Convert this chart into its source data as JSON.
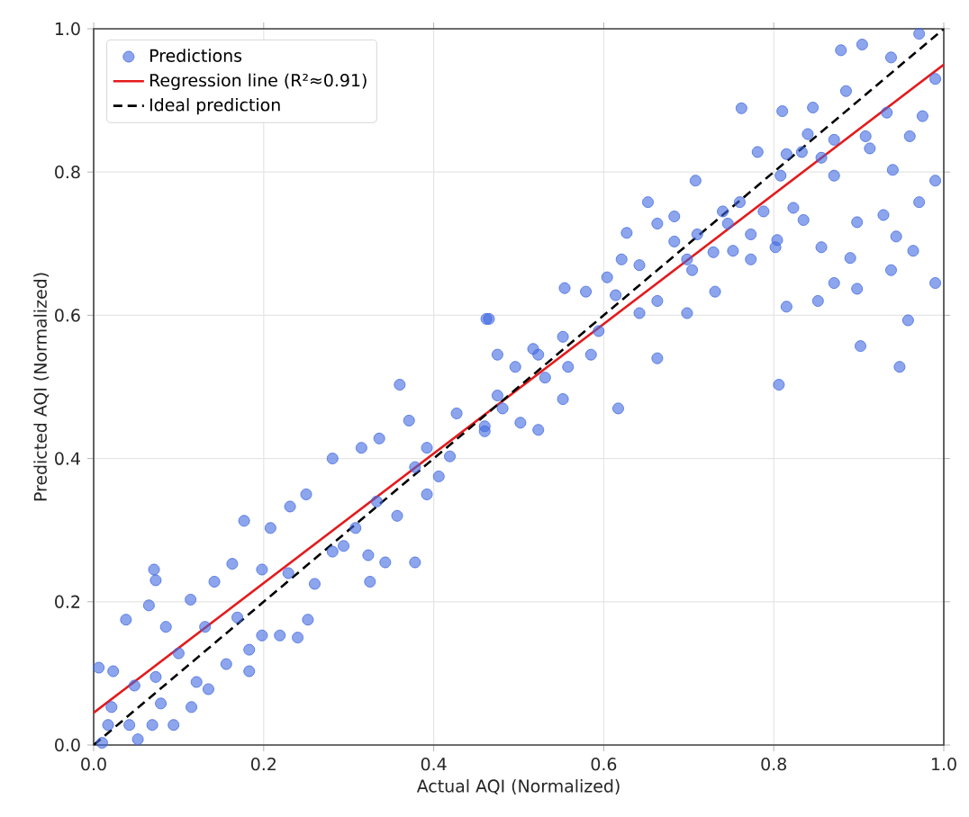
{
  "chart_data": {
    "type": "scatter",
    "xlabel": "Actual AQI (Normalized)",
    "ylabel": "Predicted AQI (Normalized)",
    "xlim": [
      0,
      1
    ],
    "ylim": [
      0,
      1
    ],
    "xticks": [
      {
        "value": 0,
        "label": "0.0"
      },
      0.2,
      0.4,
      0.6,
      0.8,
      {
        "value": 1,
        "label": "1.0"
      }
    ],
    "yticks": [
      {
        "value": 0,
        "label": "0.0"
      },
      0.2,
      0.4,
      0.6,
      0.8,
      {
        "value": 1,
        "label": "1.0"
      }
    ],
    "grid": true,
    "legend": "top left",
    "series": [
      {
        "name": "Predictions",
        "type": "scatter",
        "marker": "circle",
        "color": "#4169e1",
        "x": [
          0.462,
          0.36,
          0.762,
          0.81,
          0.846,
          0.879,
          0.904,
          0.971,
          0.938,
          0.99,
          0.806,
          0.902,
          0.948,
          0.958,
          0.938,
          0.99,
          0.898,
          0.815,
          0.852,
          0.871,
          0.89,
          0.964,
          0.944,
          0.898,
          0.929,
          0.971,
          0.99,
          0.94,
          0.913,
          0.96,
          0.975,
          0.933,
          0.908,
          0.871,
          0.856,
          0.835,
          0.804,
          0.773,
          0.752,
          0.731,
          0.698,
          0.663,
          0.617,
          0.652,
          0.708,
          0.781,
          0.815,
          0.833,
          0.378,
          0.343,
          0.325,
          0.177,
          0.24,
          0.071,
          0.073,
          0.006,
          0.038,
          0.281,
          0.315,
          0.231,
          0.25,
          0.208,
          0.156,
          0.183,
          0.198,
          0.114,
          0.142,
          0.079,
          0.094,
          0.021,
          0.023,
          0.073,
          0.048,
          0.121,
          0.1,
          0.085,
          0.065,
          0.163,
          0.198,
          0.169,
          0.131,
          0.229,
          0.26,
          0.281,
          0.294,
          0.323,
          0.308,
          0.333,
          0.357,
          0.392,
          0.406,
          0.378,
          0.392,
          0.336,
          0.371,
          0.427,
          0.419,
          0.46,
          0.475,
          0.252,
          0.219,
          0.183,
          0.135,
          0.115,
          0.069,
          0.042,
          0.052,
          0.017,
          0.01,
          0.465,
          0.475,
          0.517,
          0.554,
          0.579,
          0.604,
          0.627,
          0.663,
          0.683,
          0.704,
          0.729,
          0.74,
          0.76,
          0.788,
          0.802,
          0.823,
          0.856,
          0.84,
          0.871,
          0.885,
          0.621,
          0.663,
          0.594,
          0.558,
          0.496,
          0.531,
          0.552,
          0.642,
          0.698,
          0.683,
          0.746,
          0.773,
          0.71,
          0.808,
          0.614,
          0.642,
          0.585,
          0.523,
          0.481,
          0.523,
          0.552,
          0.502,
          0.46
        ],
        "values": [
          0.595,
          0.503,
          0.889,
          0.885,
          0.89,
          0.97,
          0.978,
          0.993,
          0.96,
          0.93,
          0.503,
          0.557,
          0.528,
          0.593,
          0.663,
          0.645,
          0.637,
          0.612,
          0.62,
          0.645,
          0.68,
          0.69,
          0.71,
          0.73,
          0.74,
          0.758,
          0.788,
          0.803,
          0.833,
          0.85,
          0.878,
          0.883,
          0.85,
          0.845,
          0.82,
          0.733,
          0.705,
          0.678,
          0.69,
          0.633,
          0.603,
          0.54,
          0.47,
          0.758,
          0.788,
          0.828,
          0.825,
          0.828,
          0.255,
          0.255,
          0.228,
          0.313,
          0.15,
          0.245,
          0.23,
          0.108,
          0.175,
          0.4,
          0.415,
          0.333,
          0.35,
          0.303,
          0.113,
          0.133,
          0.153,
          0.203,
          0.228,
          0.058,
          0.028,
          0.053,
          0.103,
          0.095,
          0.083,
          0.088,
          0.128,
          0.165,
          0.195,
          0.253,
          0.245,
          0.178,
          0.165,
          0.24,
          0.225,
          0.27,
          0.278,
          0.265,
          0.303,
          0.34,
          0.32,
          0.35,
          0.375,
          0.388,
          0.415,
          0.428,
          0.453,
          0.463,
          0.403,
          0.445,
          0.488,
          0.175,
          0.153,
          0.103,
          0.078,
          0.053,
          0.028,
          0.028,
          0.008,
          0.028,
          0.003,
          0.595,
          0.545,
          0.553,
          0.638,
          0.633,
          0.653,
          0.715,
          0.728,
          0.703,
          0.663,
          0.688,
          0.745,
          0.758,
          0.745,
          0.695,
          0.75,
          0.695,
          0.853,
          0.795,
          0.913,
          0.678,
          0.62,
          0.578,
          0.528,
          0.528,
          0.513,
          0.57,
          0.67,
          0.678,
          0.738,
          0.728,
          0.713,
          0.713,
          0.795,
          0.628,
          0.603,
          0.545,
          0.545,
          0.47,
          0.44,
          0.483,
          0.45,
          0.438
        ]
      },
      {
        "name": "Regression line (R²≈0.91)",
        "type": "line",
        "color": "#e41a1c",
        "marker": "none",
        "line_style": "solid",
        "x": [
          0,
          1
        ],
        "values": [
          0.045,
          0.95
        ]
      },
      {
        "name": "Ideal prediction",
        "type": "line",
        "color": "#000000",
        "marker": "none",
        "line_style": "dashed",
        "x": [
          0,
          1
        ],
        "values": [
          0,
          1
        ]
      }
    ]
  }
}
